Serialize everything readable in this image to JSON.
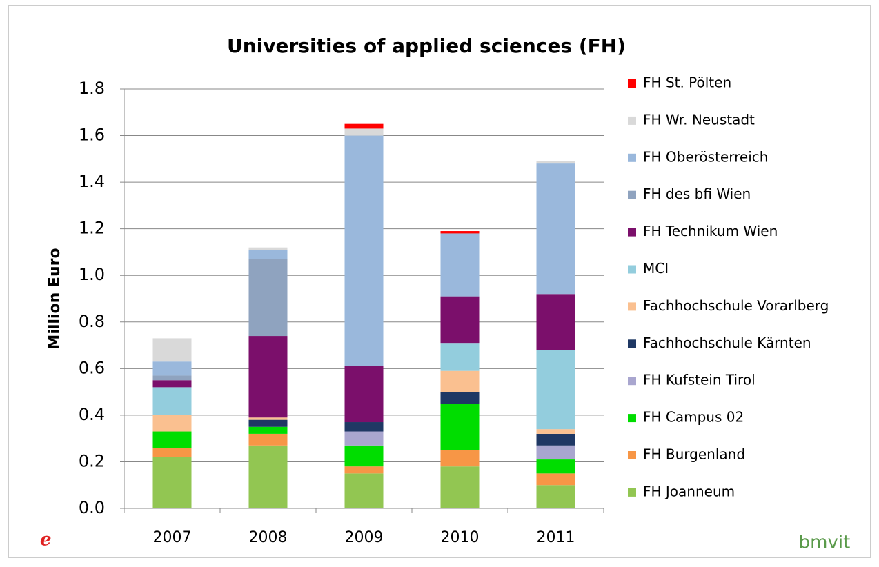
{
  "chart_data": {
    "type": "stacked_bar",
    "title": "Universities of applied sciences (FH)",
    "y_label": "Million Euro",
    "logo": "bmvit",
    "categories": [
      "2007",
      "2008",
      "2009",
      "2010",
      "2011"
    ],
    "ylim": [
      0,
      1.8
    ],
    "yticks": [
      {
        "value": 0,
        "label": "0.0"
      },
      0.2,
      0.4,
      0.6,
      0.8,
      {
        "value": 1,
        "label": "1.0"
      },
      1.2,
      1.4,
      1.6,
      1.8
    ],
    "grid": true,
    "legend": "right",
    "series": [
      {
        "name": "FH Joanneum",
        "color": "#92c652",
        "values": [
          0.22,
          0.27,
          0.15,
          0.18,
          0.1
        ]
      },
      {
        "name": "FH Burgenland",
        "color": "#f79646",
        "values": [
          0.04,
          0.05,
          0.03,
          0.07,
          0.05
        ]
      },
      {
        "name": "FH Campus 02",
        "color": "#00dd00",
        "values": [
          0.07,
          0.03,
          0.09,
          0.2,
          0.06
        ]
      },
      {
        "name": "FH Kufstein Tirol",
        "color": "#a9a6cf",
        "values": [
          0,
          0,
          0.06,
          0,
          0.06
        ]
      },
      {
        "name": "Fachhochschule Kärnten",
        "color": "#1f3864",
        "values": [
          0,
          0.03,
          0.04,
          0.05,
          0.05
        ]
      },
      {
        "name": "Fachhochschule Vorarlberg",
        "color": "#fac090",
        "values": [
          0.07,
          0.01,
          0,
          0.09,
          0.02
        ]
      },
      {
        "name": "MCI",
        "color": "#93cddd",
        "values": [
          0.12,
          0,
          0,
          0.12,
          0.34
        ]
      },
      {
        "name": "FH Technikum Wien",
        "color": "#7b0f6b",
        "values": [
          0.03,
          0.35,
          0.24,
          0.2,
          0.24
        ]
      },
      {
        "name": "FH des bfi Wien",
        "color": "#8fa3bf",
        "values": [
          0.02,
          0.33,
          0,
          0,
          0
        ]
      },
      {
        "name": "FH Oberösterreich",
        "color": "#9ab8dc",
        "values": [
          0.06,
          0.04,
          0.99,
          0.27,
          0.56
        ]
      },
      {
        "name": "FH Wr. Neustadt",
        "color": "#d9d9d9",
        "values": [
          0.1,
          0.01,
          0.03,
          0,
          0.01
        ]
      },
      {
        "name": "FH St. Pölten",
        "color": "#ff0000",
        "values": [
          0,
          0,
          0.02,
          0.01,
          0
        ]
      }
    ]
  }
}
